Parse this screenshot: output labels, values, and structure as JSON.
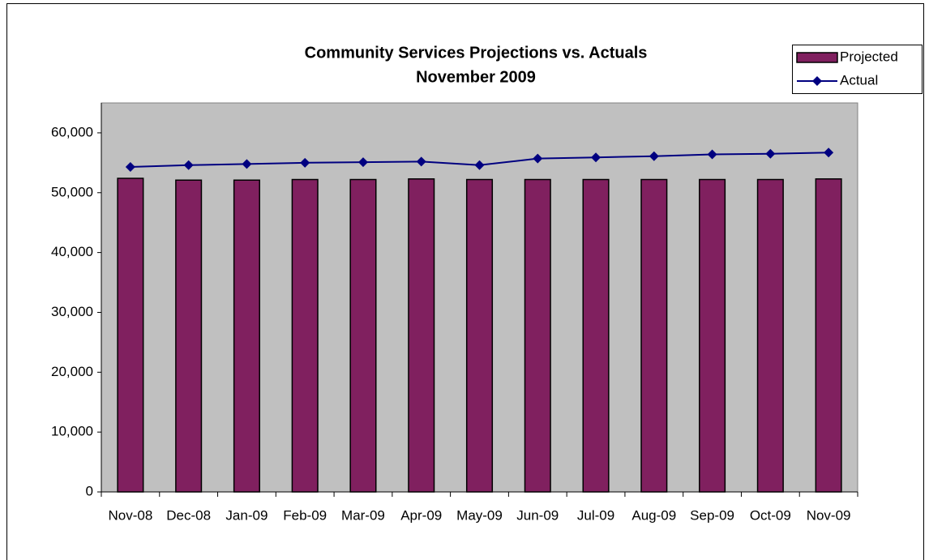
{
  "chart_data": {
    "type": "bar_line",
    "title": "Community Services Projections vs. Actuals",
    "subtitle": "November 2009",
    "categories": [
      "Nov-08",
      "Dec-08",
      "Jan-09",
      "Feb-09",
      "Mar-09",
      "Apr-09",
      "May-09",
      "Jun-09",
      "Jul-09",
      "Aug-09",
      "Sep-09",
      "Oct-09",
      "Nov-09"
    ],
    "series": [
      {
        "name": "Projected",
        "type": "bar",
        "color": "#80205f",
        "values": [
          52400,
          52100,
          52100,
          52200,
          52200,
          52300,
          52200,
          52200,
          52200,
          52200,
          52200,
          52200,
          52300
        ]
      },
      {
        "name": "Actual",
        "type": "line",
        "color": "#000080",
        "values": [
          54300,
          54600,
          54800,
          55000,
          55100,
          55200,
          54600,
          55700,
          55900,
          56100,
          56400,
          56500,
          56700
        ]
      }
    ],
    "ylim": [
      0,
      65000
    ],
    "yticks": [
      0,
      {
        "value": 10000,
        "label": "10,000"
      },
      {
        "value": 20000,
        "label": "20,000"
      },
      {
        "value": 30000,
        "label": "30,000"
      },
      {
        "value": 40000,
        "label": "40,000"
      },
      {
        "value": 50000,
        "label": "50,000"
      },
      {
        "value": 60000,
        "label": "60,000"
      }
    ],
    "grid": false,
    "legend": "top-right"
  }
}
